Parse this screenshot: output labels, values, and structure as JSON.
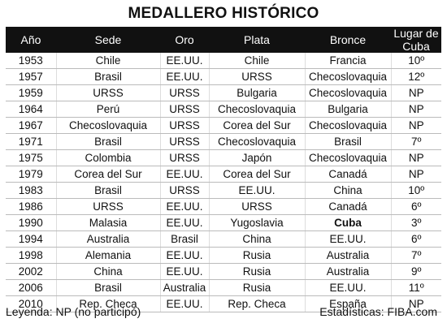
{
  "title": "MEDALLERO HISTÓRICO",
  "table": {
    "headers": [
      "Año",
      "Sede",
      "Oro",
      "Plata",
      "Bronce",
      "Lugar de Cuba"
    ],
    "rows": [
      [
        "1953",
        "Chile",
        "EE.UU.",
        "Chile",
        "Francia",
        "10º"
      ],
      [
        "1957",
        "Brasil",
        "EE.UU.",
        "URSS",
        "Checoslovaquia",
        "12º"
      ],
      [
        "1959",
        "URSS",
        "URSS",
        "Bulgaria",
        "Checoslovaquia",
        "NP"
      ],
      [
        "1964",
        "Perú",
        "URSS",
        "Checoslovaquia",
        "Bulgaria",
        "NP"
      ],
      [
        "1967",
        "Checoslovaquia",
        "URSS",
        "Corea del Sur",
        "Checoslovaquia",
        "NP"
      ],
      [
        "1971",
        "Brasil",
        "URSS",
        "Checoslovaquia",
        "Brasil",
        "7º"
      ],
      [
        "1975",
        "Colombia",
        "URSS",
        "Japón",
        "Checoslovaquia",
        "NP"
      ],
      [
        "1979",
        "Corea del Sur",
        "EE.UU.",
        "Corea del Sur",
        "Canadá",
        "NP"
      ],
      [
        "1983",
        "Brasil",
        "URSS",
        "EE.UU.",
        "China",
        "10º"
      ],
      [
        "1986",
        "URSS",
        "EE.UU.",
        "URSS",
        "Canadá",
        "6º"
      ],
      [
        "1990",
        "Malasia",
        "EE.UU.",
        "Yugoslavia",
        "Cuba",
        "3º"
      ],
      [
        "1994",
        "Australia",
        "Brasil",
        "China",
        "EE.UU.",
        "6º"
      ],
      [
        "1998",
        "Alemania",
        "EE.UU.",
        "Rusia",
        "Australia",
        "7º"
      ],
      [
        "2002",
        "China",
        "EE.UU.",
        "Rusia",
        "Australia",
        "9º"
      ],
      [
        "2006",
        "Brasil",
        "Australia",
        "Rusia",
        "EE.UU.",
        "11º"
      ],
      [
        "2010",
        "Rep. Checa",
        "EE.UU.",
        "Rep. Checa",
        "España",
        "NP"
      ]
    ]
  },
  "footer": {
    "legend": "Leyenda: NP (no participó)",
    "source": "Estadísticas: FIBA.com"
  }
}
